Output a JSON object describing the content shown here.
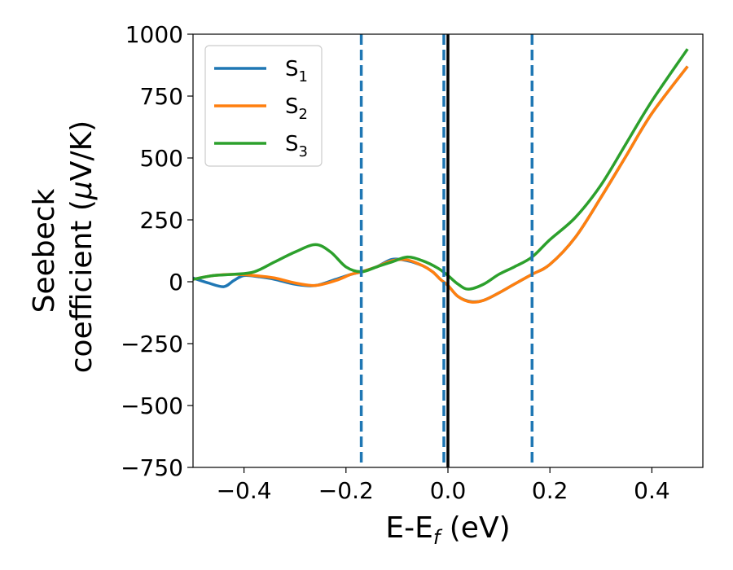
{
  "chart_data": {
    "type": "line",
    "title": "",
    "xlabel": {
      "main": "E-E",
      "sub": "f",
      "suffix": " (eV)"
    },
    "ylabel": {
      "line1": "Seebeck",
      "line2_pre": "coefficient  (",
      "mu": "μ",
      "line2_post": "V/K)"
    },
    "xlim": [
      -0.5,
      0.5
    ],
    "ylim": [
      -750,
      1000
    ],
    "xticks": [
      -0.4,
      -0.2,
      0.0,
      0.2,
      0.4
    ],
    "xtick_labels": [
      "−0.4",
      "−0.2",
      "0.0",
      "0.2",
      "0.4"
    ],
    "yticks": [
      -750,
      -500,
      -250,
      0,
      250,
      500,
      750,
      1000
    ],
    "ytick_labels": [
      "−750",
      "−500",
      "−250",
      "0",
      "250",
      "500",
      "750",
      "1000"
    ],
    "grid": false,
    "legend_position": "top-left",
    "vlines": [
      {
        "x": -0.17,
        "style": "dashed",
        "color": "#1f77b4"
      },
      {
        "x": -0.008,
        "style": "dashed",
        "color": "#1f77b4"
      },
      {
        "x": 0.0,
        "style": "solid",
        "color": "#000000"
      },
      {
        "x": 0.165,
        "style": "dashed",
        "color": "#1f77b4"
      }
    ],
    "series": [
      {
        "name": "S",
        "sub": "1",
        "color": "#1f77b4",
        "x": [
          -0.5,
          -0.47,
          -0.44,
          -0.42,
          -0.4,
          -0.37,
          -0.34,
          -0.3,
          -0.26,
          -0.22,
          -0.19,
          -0.17,
          -0.14,
          -0.11,
          -0.08,
          -0.05,
          -0.03,
          -0.015,
          0.0,
          0.02,
          0.045,
          0.07,
          0.1,
          0.13,
          0.165,
          0.2,
          0.25,
          0.3,
          0.35,
          0.4,
          0.47
        ],
        "y": [
          15,
          -5,
          -20,
          5,
          25,
          20,
          10,
          -10,
          -15,
          10,
          30,
          40,
          60,
          90,
          85,
          65,
          40,
          10,
          -15,
          -60,
          -80,
          -75,
          -45,
          -10,
          30,
          70,
          180,
          340,
          510,
          680,
          870
        ]
      },
      {
        "name": "S",
        "sub": "2",
        "color": "#ff7f0e",
        "x": [
          -0.5,
          -0.46,
          -0.42,
          -0.38,
          -0.34,
          -0.3,
          -0.26,
          -0.22,
          -0.19,
          -0.17,
          -0.14,
          -0.11,
          -0.08,
          -0.05,
          -0.03,
          -0.015,
          0.0,
          0.02,
          0.045,
          0.07,
          0.1,
          0.13,
          0.165,
          0.2,
          0.25,
          0.3,
          0.35,
          0.4,
          0.47
        ],
        "y": [
          10,
          25,
          30,
          25,
          15,
          -5,
          -15,
          5,
          30,
          40,
          60,
          85,
          88,
          65,
          40,
          10,
          -15,
          -60,
          -82,
          -75,
          -45,
          -10,
          30,
          70,
          180,
          340,
          510,
          680,
          870
        ]
      },
      {
        "name": "S",
        "sub": "3",
        "color": "#2ca02c",
        "x": [
          -0.5,
          -0.46,
          -0.42,
          -0.38,
          -0.34,
          -0.3,
          -0.26,
          -0.23,
          -0.2,
          -0.17,
          -0.14,
          -0.11,
          -0.08,
          -0.05,
          -0.02,
          0.0,
          0.02,
          0.04,
          0.07,
          0.1,
          0.13,
          0.165,
          0.2,
          0.25,
          0.3,
          0.35,
          0.4,
          0.47
        ],
        "y": [
          10,
          25,
          30,
          40,
          80,
          120,
          150,
          120,
          60,
          40,
          60,
          80,
          100,
          85,
          55,
          25,
          -10,
          -30,
          -10,
          30,
          60,
          100,
          170,
          260,
          390,
          560,
          730,
          940
        ]
      }
    ]
  }
}
